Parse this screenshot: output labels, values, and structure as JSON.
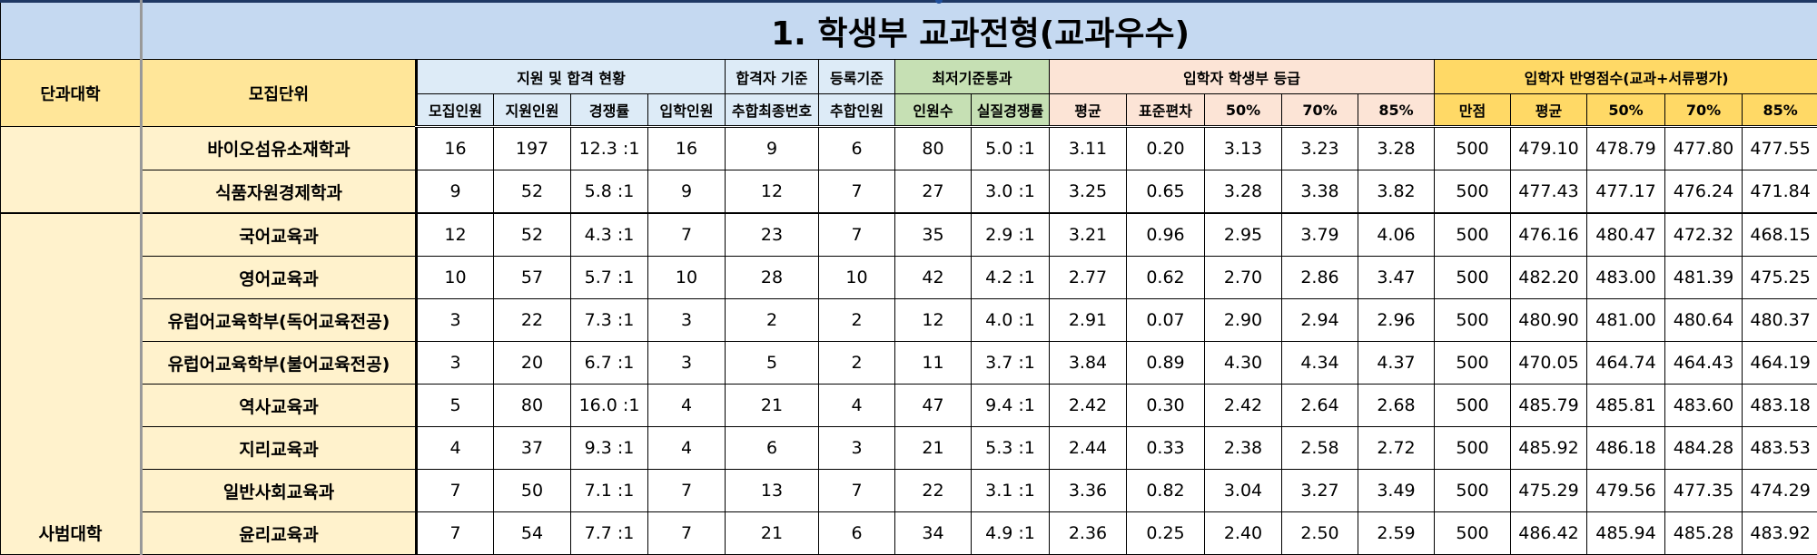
{
  "title": "1. 학생부 교과전형(교과우수)",
  "headers": {
    "college": "단과대학",
    "unit": "모집단위",
    "group_apply": "지원 및 합격 현황",
    "group_pass": "합격자 기준",
    "group_reg": "등록기준",
    "group_min": "최저기준통과",
    "group_grade": "입학자 학생부 등급",
    "group_score": "입학자 반영점수(교과+서류평가)",
    "sub": [
      "모집인원",
      "지원인원",
      "경쟁률",
      "입학인원",
      "추합최종번호",
      "추합인원",
      "인원수",
      "실질경쟁률",
      "평균",
      "표준편차",
      "50%",
      "70%",
      "85%",
      "만점",
      "평균",
      "50%",
      "70%",
      "85%"
    ]
  },
  "groups": [
    {
      "college": "",
      "rows": [
        {
          "unit": "바이오섬유소재학과",
          "cells": [
            "16",
            "197",
            "12.3 :1",
            "16",
            "9",
            "6",
            "80",
            "5.0 :1",
            "3.11",
            "0.20",
            "3.13",
            "3.23",
            "3.28",
            "500",
            "479.10",
            "478.79",
            "477.80",
            "477.55"
          ]
        },
        {
          "unit": "식품자원경제학과",
          "cells": [
            "9",
            "52",
            "5.8 :1",
            "9",
            "12",
            "7",
            "27",
            "3.0 :1",
            "3.25",
            "0.65",
            "3.28",
            "3.38",
            "3.82",
            "500",
            "477.43",
            "477.17",
            "476.24",
            "471.84"
          ]
        }
      ]
    },
    {
      "college": "사범대학",
      "rows": [
        {
          "unit": "국어교육과",
          "cells": [
            "12",
            "52",
            "4.3 :1",
            "7",
            "23",
            "7",
            "35",
            "2.9 :1",
            "3.21",
            "0.96",
            "2.95",
            "3.79",
            "4.06",
            "500",
            "476.16",
            "480.47",
            "472.32",
            "468.15"
          ]
        },
        {
          "unit": "영어교육과",
          "cells": [
            "10",
            "57",
            "5.7 :1",
            "10",
            "28",
            "10",
            "42",
            "4.2 :1",
            "2.77",
            "0.62",
            "2.70",
            "2.86",
            "3.47",
            "500",
            "482.20",
            "483.00",
            "481.39",
            "475.25"
          ]
        },
        {
          "unit": "유럽어교육학부(독어교육전공)",
          "cells": [
            "3",
            "22",
            "7.3 :1",
            "3",
            "2",
            "2",
            "12",
            "4.0 :1",
            "2.91",
            "0.07",
            "2.90",
            "2.94",
            "2.96",
            "500",
            "480.90",
            "481.00",
            "480.64",
            "480.37"
          ]
        },
        {
          "unit": "유럽어교육학부(불어교육전공)",
          "cells": [
            "3",
            "20",
            "6.7 :1",
            "3",
            "5",
            "2",
            "11",
            "3.7 :1",
            "3.84",
            "0.89",
            "4.30",
            "4.34",
            "4.37",
            "500",
            "470.05",
            "464.74",
            "464.43",
            "464.19"
          ]
        },
        {
          "unit": "역사교육과",
          "cells": [
            "5",
            "80",
            "16.0 :1",
            "4",
            "21",
            "4",
            "47",
            "9.4 :1",
            "2.42",
            "0.30",
            "2.42",
            "2.64",
            "2.68",
            "500",
            "485.79",
            "485.81",
            "483.60",
            "483.18"
          ]
        },
        {
          "unit": "지리교육과",
          "cells": [
            "4",
            "37",
            "9.3 :1",
            "4",
            "6",
            "3",
            "21",
            "5.3 :1",
            "2.44",
            "0.33",
            "2.38",
            "2.58",
            "2.72",
            "500",
            "485.92",
            "486.18",
            "484.28",
            "483.53"
          ]
        },
        {
          "unit": "일반사회교육과",
          "cells": [
            "7",
            "50",
            "7.1 :1",
            "7",
            "13",
            "7",
            "22",
            "3.1 :1",
            "3.36",
            "0.82",
            "3.04",
            "3.27",
            "3.49",
            "500",
            "475.29",
            "479.56",
            "477.35",
            "474.29"
          ]
        },
        {
          "unit": "윤리교육과",
          "cells": [
            "7",
            "54",
            "7.7 :1",
            "7",
            "21",
            "6",
            "34",
            "4.9 :1",
            "2.36",
            "0.25",
            "2.40",
            "2.50",
            "2.59",
            "500",
            "486.42",
            "485.94",
            "485.28",
            "483.92"
          ]
        }
      ]
    }
  ]
}
